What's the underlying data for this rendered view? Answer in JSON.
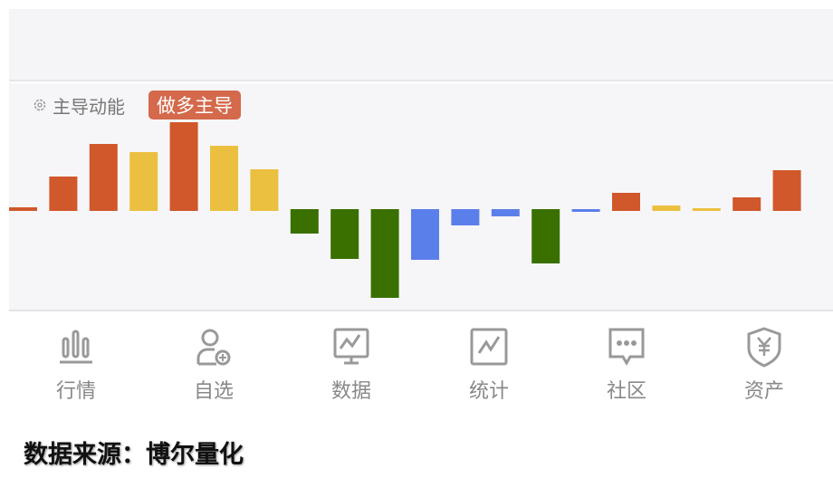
{
  "panel": {
    "title": "主导动能",
    "badge": "做多主导",
    "settings_icon": "gear-icon"
  },
  "chart_data": {
    "type": "bar",
    "title": "主导动能",
    "values": [
      4,
      38,
      74,
      65,
      98,
      72,
      46,
      -27,
      -55,
      -98,
      -56,
      -18,
      -8,
      -60,
      -3,
      20,
      6,
      3,
      15,
      45
    ],
    "colors": [
      "#d0582b",
      "#d0582b",
      "#d0582b",
      "#ebc040",
      "#d0582b",
      "#ebc040",
      "#ebc040",
      "#3a7000",
      "#3a7000",
      "#3a7000",
      "#5b7fea",
      "#5b7fea",
      "#5b7fea",
      "#3a7000",
      "#5b7fea",
      "#d0582b",
      "#ebc040",
      "#ebc040",
      "#d0582b",
      "#d0582b"
    ],
    "grid": false
  },
  "nav": {
    "items": [
      {
        "label": "行情",
        "icon": "bar-chart-icon"
      },
      {
        "label": "自选",
        "icon": "user-add-icon"
      },
      {
        "label": "数据",
        "icon": "monitor-chart-icon"
      },
      {
        "label": "统计",
        "icon": "line-chart-icon"
      },
      {
        "label": "社区",
        "icon": "chat-bubble-icon"
      },
      {
        "label": "资产",
        "icon": "yen-shield-icon"
      }
    ]
  },
  "source": "数据来源：博尔量化"
}
